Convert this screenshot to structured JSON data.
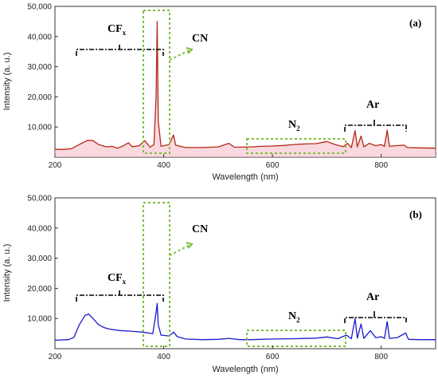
{
  "chart_data": [
    {
      "type": "line",
      "panel_label": "(a)",
      "xlabel": "Wavelength (nm)",
      "ylabel": "Intensity (a. u.)",
      "xlim": [
        200,
        900
      ],
      "ylim": [
        0,
        50000
      ],
      "x_ticks": [
        "200",
        "400",
        "600",
        "800"
      ],
      "y_ticks": [
        "10,000",
        "20,000",
        "30,000",
        "40,000",
        "50,000"
      ],
      "line_color": "#b22a16",
      "fill_color": "#f4b8c4",
      "series": [
        {
          "points": [
            [
              200,
              2600
            ],
            [
              215,
              2600
            ],
            [
              230,
              2800
            ],
            [
              245,
              4200
            ],
            [
              260,
              5600
            ],
            [
              270,
              5500
            ],
            [
              280,
              4200
            ],
            [
              295,
              3400
            ],
            [
              305,
              3600
            ],
            [
              315,
              3000
            ],
            [
              325,
              3700
            ],
            [
              335,
              4800
            ],
            [
              342,
              3500
            ],
            [
              355,
              3800
            ],
            [
              365,
              5500
            ],
            [
              375,
              3300
            ],
            [
              382,
              4200
            ],
            [
              386,
              20000
            ],
            [
              388,
              45000
            ],
            [
              390,
              12000
            ],
            [
              395,
              3600
            ],
            [
              410,
              4200
            ],
            [
              418,
              7400
            ],
            [
              422,
              4000
            ],
            [
              440,
              3200
            ],
            [
              470,
              3200
            ],
            [
              500,
              3400
            ],
            [
              520,
              4600
            ],
            [
              530,
              3300
            ],
            [
              560,
              3400
            ],
            [
              580,
              3600
            ],
            [
              600,
              3700
            ],
            [
              620,
              3900
            ],
            [
              640,
              4200
            ],
            [
              660,
              4400
            ],
            [
              680,
              4500
            ],
            [
              700,
              5200
            ],
            [
              715,
              4200
            ],
            [
              730,
              3500
            ],
            [
              738,
              4600
            ],
            [
              745,
              3200
            ],
            [
              752,
              8800
            ],
            [
              756,
              3400
            ],
            [
              763,
              7000
            ],
            [
              768,
              3400
            ],
            [
              778,
              4600
            ],
            [
              790,
              3800
            ],
            [
              800,
              4200
            ],
            [
              806,
              3600
            ],
            [
              811,
              9000
            ],
            [
              815,
              3600
            ],
            [
              826,
              3800
            ],
            [
              842,
              4000
            ],
            [
              848,
              3200
            ],
            [
              870,
              3100
            ],
            [
              900,
              3000
            ]
          ]
        }
      ],
      "annotations": [
        {
          "text": "CF",
          "sub": "x"
        },
        {
          "text": "CN"
        },
        {
          "text": "N",
          "sub": "2"
        },
        {
          "text": "Ar"
        }
      ]
    },
    {
      "type": "line",
      "panel_label": "(b)",
      "xlabel": "Wavelength (nm)",
      "ylabel": "Intensity (a. u.)",
      "xlim": [
        200,
        900
      ],
      "ylim": [
        0,
        50000
      ],
      "x_ticks": [
        "200",
        "400",
        "600",
        "800"
      ],
      "y_ticks": [
        "10,000",
        "20,000",
        "30,000",
        "40,000",
        "50,000"
      ],
      "line_color": "#1a1acc",
      "series": [
        {
          "points": [
            [
              200,
              2800
            ],
            [
              225,
              3000
            ],
            [
              235,
              3800
            ],
            [
              245,
              8000
            ],
            [
              255,
              11000
            ],
            [
              262,
              11500
            ],
            [
              270,
              10000
            ],
            [
              280,
              8000
            ],
            [
              290,
              7000
            ],
            [
              300,
              6500
            ],
            [
              320,
              6000
            ],
            [
              340,
              5800
            ],
            [
              360,
              5500
            ],
            [
              380,
              5000
            ],
            [
              386,
              12000
            ],
            [
              388,
              15000
            ],
            [
              390,
              8000
            ],
            [
              395,
              4500
            ],
            [
              410,
              4200
            ],
            [
              418,
              5500
            ],
            [
              425,
              4000
            ],
            [
              440,
              3200
            ],
            [
              470,
              3000
            ],
            [
              500,
              3100
            ],
            [
              520,
              3400
            ],
            [
              540,
              3000
            ],
            [
              560,
              3000
            ],
            [
              600,
              3200
            ],
            [
              640,
              3300
            ],
            [
              680,
              3500
            ],
            [
              700,
              3900
            ],
            [
              720,
              3300
            ],
            [
              736,
              4500
            ],
            [
              745,
              3300
            ],
            [
              752,
              10000
            ],
            [
              756,
              3500
            ],
            [
              763,
              8200
            ],
            [
              768,
              3400
            ],
            [
              780,
              6000
            ],
            [
              790,
              3600
            ],
            [
              800,
              4000
            ],
            [
              806,
              3400
            ],
            [
              811,
              9000
            ],
            [
              815,
              3400
            ],
            [
              830,
              3700
            ],
            [
              845,
              5200
            ],
            [
              850,
              3100
            ],
            [
              870,
              3000
            ],
            [
              900,
              3000
            ]
          ]
        }
      ],
      "annotations": [
        {
          "text": "CF",
          "sub": "x"
        },
        {
          "text": "CN"
        },
        {
          "text": "N",
          "sub": "2"
        },
        {
          "text": "Ar"
        }
      ]
    }
  ]
}
